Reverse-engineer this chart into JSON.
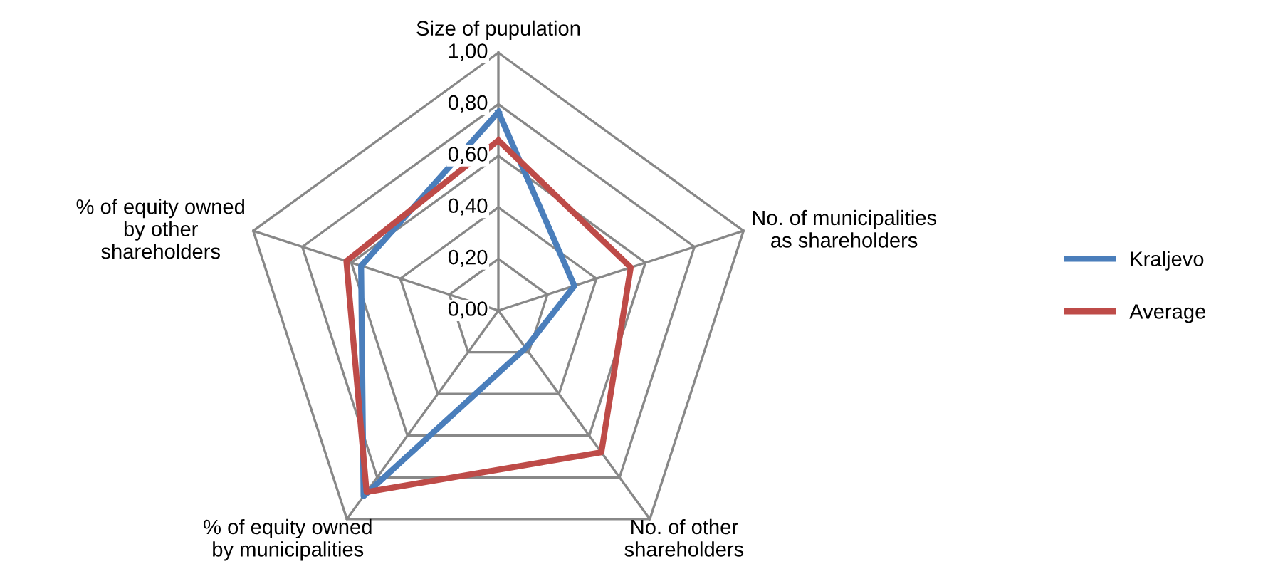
{
  "chart_data": {
    "type": "radar",
    "categories": [
      "Size of pupulation",
      "No. of municipalities\nas shareholders",
      "No. of other\nshareholders",
      "% of equity owned\nby municipalities",
      "% of equity owned\nby other\nshareholders"
    ],
    "series": [
      {
        "name": "Kraljevo",
        "color": "#4a7ebb",
        "values": [
          0.77,
          0.31,
          0.18,
          0.89,
          0.56
        ]
      },
      {
        "name": "Average",
        "color": "#be4b48",
        "values": [
          0.66,
          0.54,
          0.68,
          0.87,
          0.62
        ]
      }
    ],
    "ylim": [
      0,
      1
    ],
    "yticks": [
      {
        "value": 0,
        "label": "0,00"
      },
      {
        "value": 0.2,
        "label": "0,20"
      },
      {
        "value": 0.4,
        "label": "0,40"
      },
      {
        "value": 0.6,
        "label": "0,60"
      },
      {
        "value": 0.8,
        "label": "0,80"
      },
      {
        "value": 1,
        "label": "1,00"
      }
    ],
    "grid": true,
    "legend": "right",
    "line_style": "solid",
    "marker": "none"
  }
}
